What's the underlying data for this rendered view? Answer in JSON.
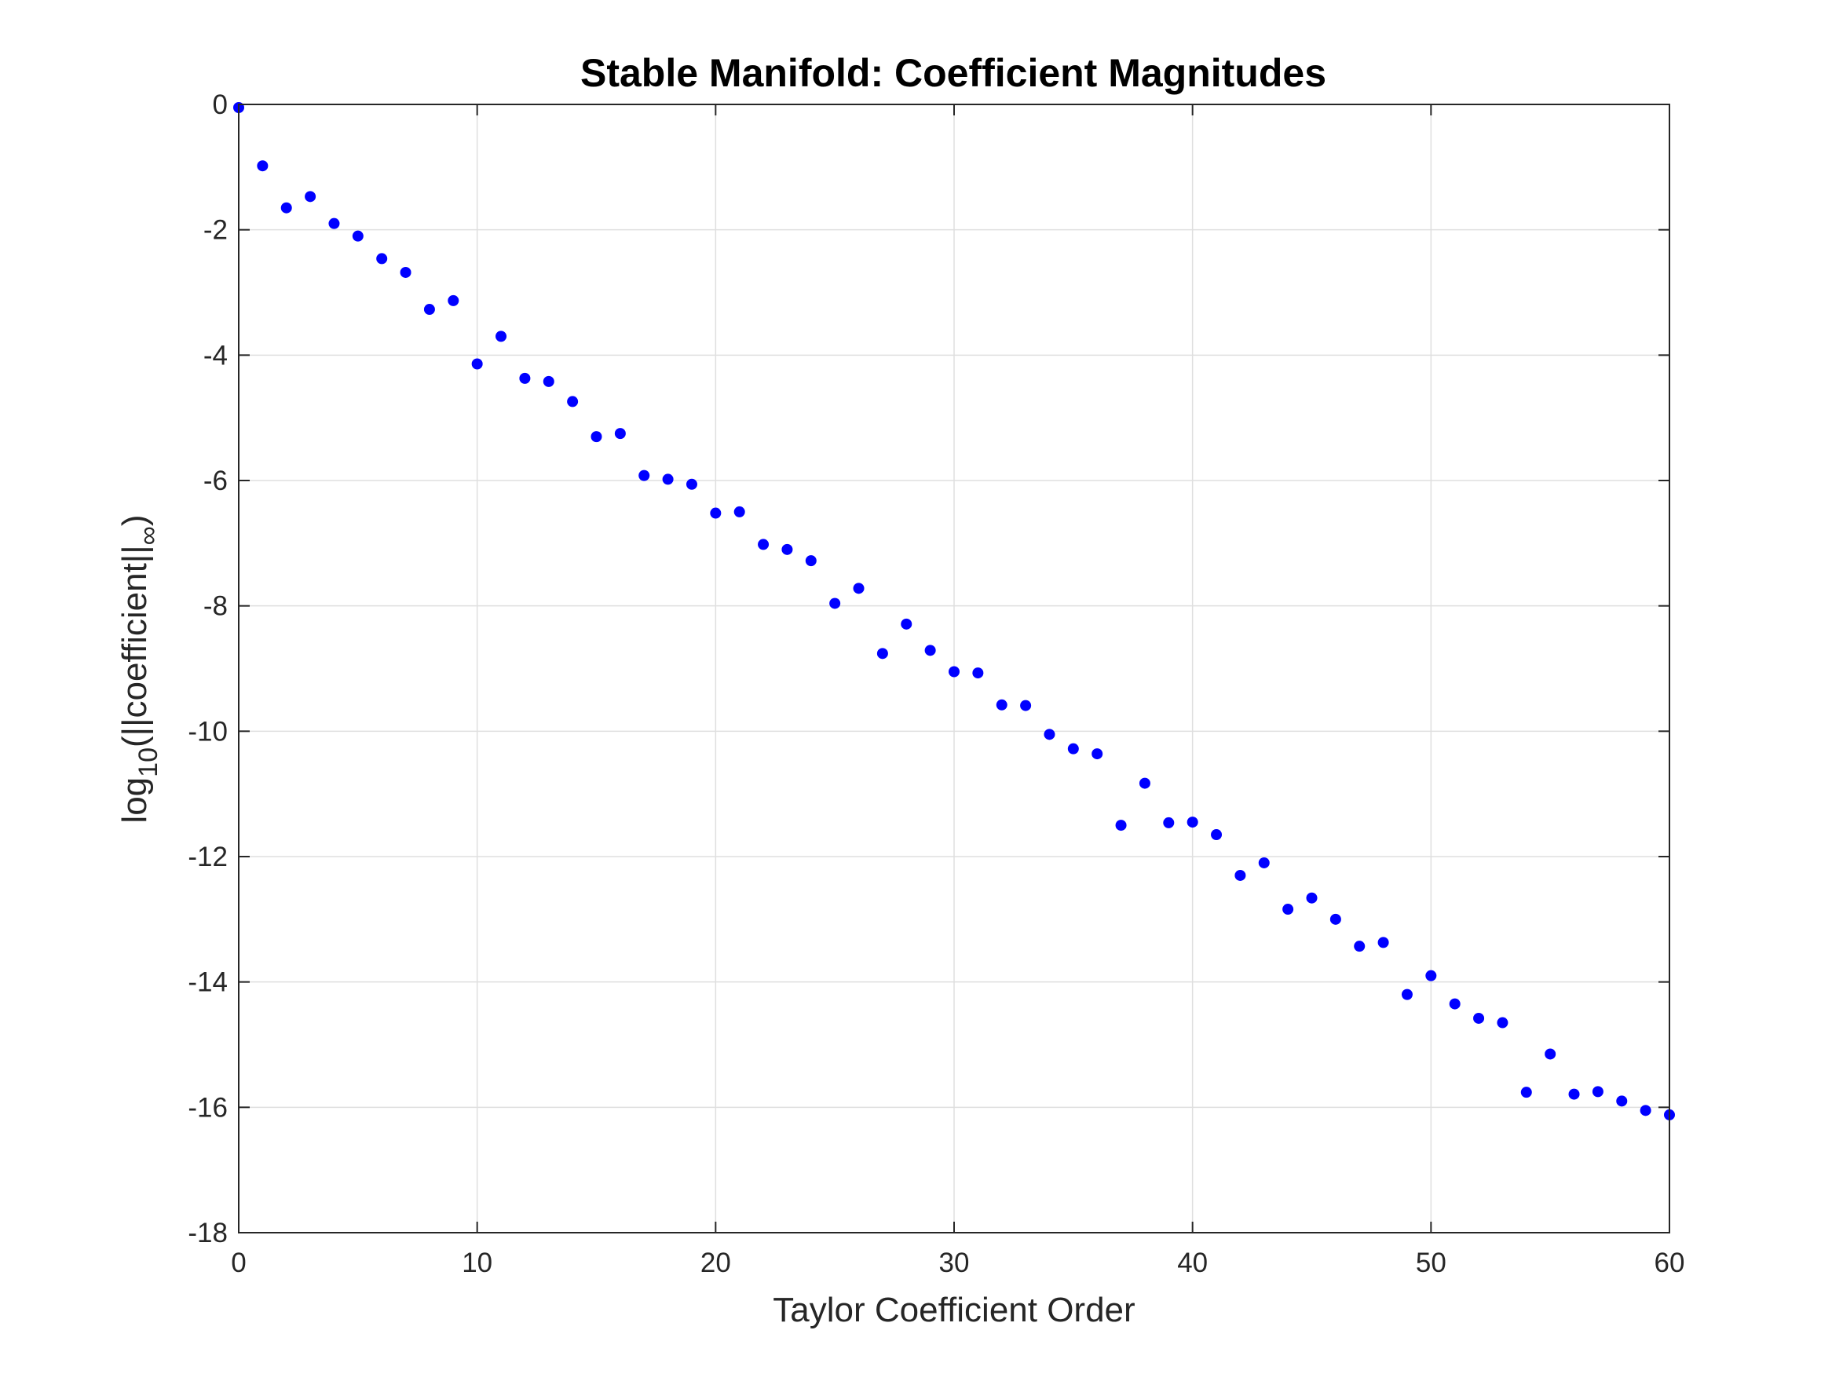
{
  "colors": {
    "marker": "#0000ff",
    "axis": "#262626",
    "grid": "#dfdfdf",
    "background": "#ffffff"
  },
  "chart_data": {
    "type": "scatter",
    "title": "Stable Manifold: Coefficient Magnitudes",
    "xlabel": "Taylor Coefficient Order",
    "ylabel": {
      "prefix": "log",
      "prefix_sub": "10",
      "body": "(||coefficient||",
      "body_sub": "∞",
      "suffix": ")"
    },
    "xlim": [
      0,
      60
    ],
    "ylim": [
      -18,
      0
    ],
    "xticks": [
      0,
      10,
      20,
      30,
      40,
      50,
      60
    ],
    "yticks": [
      0,
      -2,
      -4,
      -6,
      -8,
      -10,
      -12,
      -14,
      -16,
      -18
    ],
    "xtick_labels": [
      "0",
      "10",
      "20",
      "30",
      "40",
      "50",
      "60"
    ],
    "ytick_labels": [
      "0",
      "-2",
      "-4",
      "-6",
      "-8",
      "-10",
      "-12",
      "-14",
      "-16",
      "-18"
    ],
    "grid": true,
    "x": [
      0,
      1,
      2,
      3,
      4,
      5,
      6,
      7,
      8,
      9,
      10,
      11,
      12,
      13,
      14,
      15,
      16,
      17,
      18,
      19,
      20,
      21,
      22,
      23,
      24,
      25,
      26,
      27,
      28,
      29,
      30,
      31,
      32,
      33,
      34,
      35,
      36,
      37,
      38,
      39,
      40,
      41,
      42,
      43,
      44,
      45,
      46,
      47,
      48,
      49,
      50,
      51,
      52,
      53,
      54,
      55,
      56,
      57,
      58,
      59,
      60
    ],
    "y": [
      -0.05,
      -0.98,
      -1.65,
      -1.47,
      -1.9,
      -2.1,
      -2.46,
      -2.68,
      -3.27,
      -3.13,
      -4.14,
      -3.7,
      -4.37,
      -4.42,
      -4.74,
      -5.3,
      -5.25,
      -5.92,
      -5.98,
      -6.06,
      -6.52,
      -6.5,
      -7.02,
      -7.1,
      -7.28,
      -7.96,
      -7.72,
      -8.76,
      -8.29,
      -8.71,
      -9.05,
      -9.07,
      -9.58,
      -9.59,
      -10.05,
      -10.28,
      -10.36,
      -11.5,
      -10.83,
      -11.46,
      -11.45,
      -11.65,
      -12.3,
      -12.1,
      -12.84,
      -12.66,
      -13,
      -13.43,
      -13.37,
      -14.2,
      -13.9,
      -14.35,
      -14.58,
      -14.65,
      -15.76,
      -15.15,
      -15.79,
      -15.75,
      -15.9,
      -16.05,
      -16.12
    ]
  }
}
